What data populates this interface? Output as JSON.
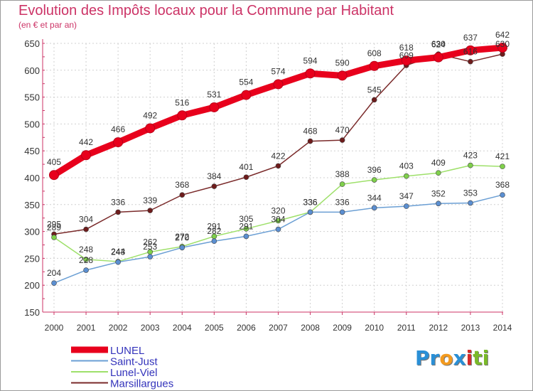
{
  "header": {
    "title": "Evolution des Impôts locaux pour la Commune par Habitant",
    "subtitle": "(en € et par an)"
  },
  "logo": {
    "parts": [
      "Pr",
      "o",
      "x",
      "i",
      "ti"
    ],
    "colors": [
      "#2a8fd6",
      "#f39a1e",
      "#2a8fd6",
      "#d62a2a",
      "#7ab929"
    ]
  },
  "chart_data": {
    "type": "line",
    "title": "Evolution des Impôts locaux pour la Commune par Habitant",
    "subtitle": "(en € et par an)",
    "xlabel": "",
    "ylabel": "",
    "x": [
      "2000",
      "2001",
      "2002",
      "2003",
      "2004",
      "2005",
      "2006",
      "2007",
      "2008",
      "2009",
      "2010",
      "2011",
      "2012",
      "2013",
      "2014"
    ],
    "ylim": [
      150,
      650
    ],
    "yticks": [
      150,
      200,
      250,
      300,
      350,
      400,
      450,
      500,
      550,
      600,
      650
    ],
    "grid": "vertical and horizontal dashed",
    "legend_position": "bottom-left",
    "series": [
      {
        "name": "LUNEL",
        "color": "#e8001c",
        "marker": "#e8001c",
        "width": 9,
        "values": [
          405,
          442,
          466,
          492,
          516,
          531,
          554,
          574,
          594,
          590,
          608,
          618,
          624,
          637,
          642
        ]
      },
      {
        "name": "Saint-Just",
        "color": "#6b9fd4",
        "marker": "#5b8fd1",
        "width": 1.5,
        "values": [
          204,
          228,
          243,
          253,
          270,
          282,
          291,
          304,
          336,
          336,
          344,
          347,
          352,
          353,
          368
        ]
      },
      {
        "name": "Lunel-Viel",
        "color": "#9ee06a",
        "marker": "#7fd04b",
        "width": 1.5,
        "values": [
          289,
          248,
          244,
          262,
          272,
          291,
          305,
          320,
          336,
          388,
          396,
          403,
          409,
          423,
          421
        ]
      },
      {
        "name": "Marsillargues",
        "color": "#7a2a2a",
        "marker": "#6e1c1c",
        "width": 1.5,
        "values": [
          295,
          304,
          336,
          339,
          368,
          384,
          401,
          422,
          468,
          470,
          545,
          609,
          630,
          616,
          630
        ]
      }
    ]
  }
}
